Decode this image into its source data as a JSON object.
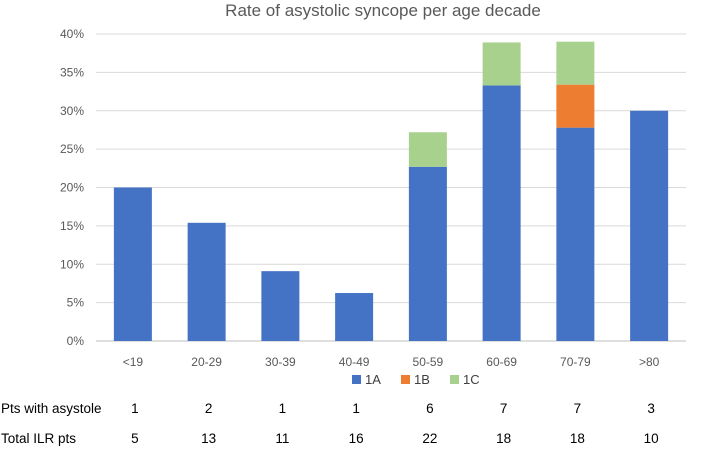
{
  "chart_data": {
    "type": "bar",
    "stacked": true,
    "title": "Rate of asystolic syncope per age decade",
    "categories": [
      "<19",
      "20-29",
      "30-39",
      "40-49",
      "50-59",
      "60-69",
      "70-79",
      ">80"
    ],
    "series": [
      {
        "name": "1A",
        "color": "#4472C4",
        "values": [
          20.0,
          15.4,
          9.1,
          6.25,
          22.7,
          33.3,
          27.8,
          30.0
        ]
      },
      {
        "name": "1B",
        "color": "#ED7D31",
        "values": [
          0,
          0,
          0,
          0,
          0,
          0,
          5.6,
          0
        ]
      },
      {
        "name": "1C",
        "color": "#A9D18E",
        "values": [
          0,
          0,
          0,
          0,
          4.5,
          5.6,
          5.6,
          0
        ]
      }
    ],
    "ylim": [
      0,
      40
    ],
    "yticks": [
      "0%",
      "5%",
      "10%",
      "15%",
      "20%",
      "25%",
      "30%",
      "35%",
      "40%"
    ],
    "grid": true,
    "legend": "bottom",
    "table": [
      {
        "label": "Pts with asystole",
        "values": [
          "1",
          "2",
          "1",
          "1",
          "6",
          "7",
          "7",
          "3"
        ]
      },
      {
        "label": "Total ILR pts",
        "values": [
          "5",
          "13",
          "11",
          "16",
          "22",
          "18",
          "18",
          "10"
        ]
      }
    ]
  }
}
